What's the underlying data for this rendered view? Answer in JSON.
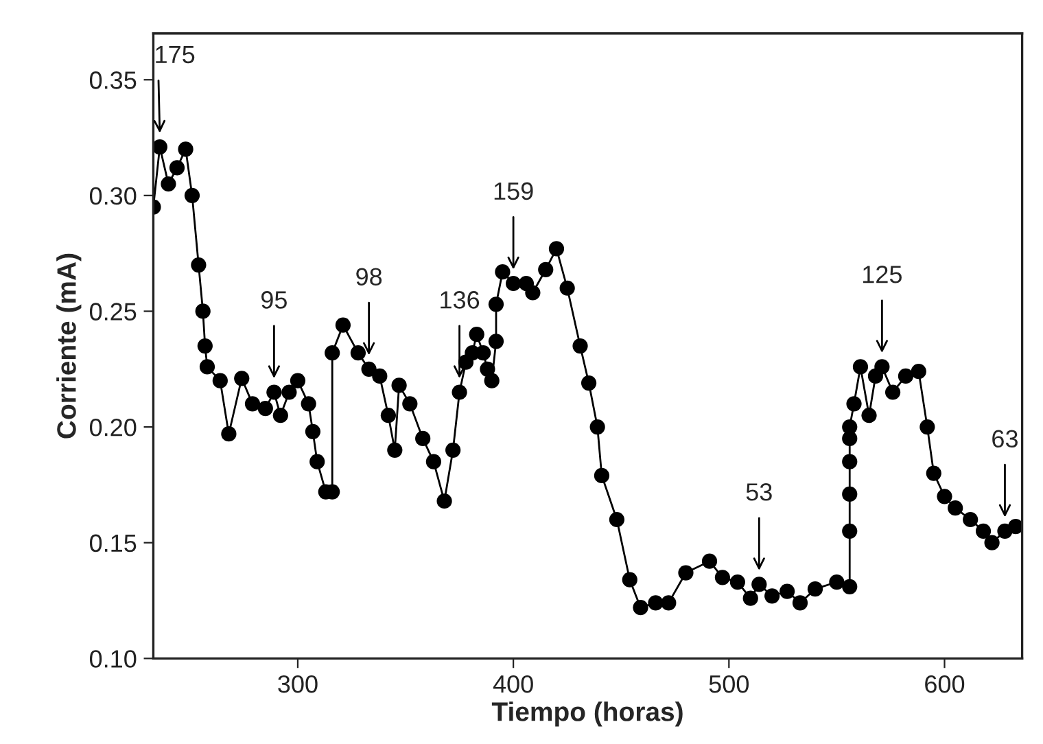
{
  "chart_data": {
    "type": "line",
    "xlabel": "Tiempo (horas)",
    "ylabel": "Corriente (mA)",
    "xlim": [
      233,
      636
    ],
    "ylim": [
      0.1,
      0.37
    ],
    "xticks": [
      300,
      400,
      500,
      600
    ],
    "yticks": [
      {
        "value": 0.1,
        "label": "0.10"
      },
      {
        "value": 0.15,
        "label": "0.15"
      },
      {
        "value": 0.2,
        "label": "0.20"
      },
      {
        "value": 0.25,
        "label": "0.25"
      },
      {
        "value": 0.3,
        "label": "0.30"
      },
      {
        "value": 0.35,
        "label": "0.35"
      }
    ],
    "grid": false,
    "legend": false,
    "marker": "circle",
    "line_style": "solid",
    "series": [
      {
        "color": "#000000",
        "x": [
          233,
          236,
          240,
          244,
          248,
          251,
          254,
          256,
          257,
          258,
          264,
          268,
          274,
          279,
          285,
          289,
          292,
          296,
          300,
          305,
          307,
          309,
          313,
          316,
          316,
          321,
          328,
          333,
          338,
          342,
          345,
          347,
          352,
          358,
          363,
          368,
          372,
          375,
          378,
          381,
          383,
          386,
          388,
          390,
          392,
          392,
          395,
          400,
          406,
          409,
          415,
          420,
          425,
          431,
          435,
          439,
          441,
          448,
          454,
          459,
          466,
          472,
          480,
          491,
          497,
          504,
          510,
          514,
          520,
          527,
          533,
          540,
          550,
          556,
          556,
          556,
          556,
          556,
          556,
          558,
          561,
          565,
          568,
          571,
          576,
          582,
          588,
          592,
          595,
          600,
          605,
          612,
          618,
          622,
          628,
          633
        ],
        "values": [
          0.295,
          0.321,
          0.305,
          0.312,
          0.32,
          0.3,
          0.27,
          0.25,
          0.235,
          0.226,
          0.22,
          0.197,
          0.221,
          0.21,
          0.208,
          0.215,
          0.205,
          0.215,
          0.22,
          0.21,
          0.198,
          0.185,
          0.172,
          0.172,
          0.232,
          0.244,
          0.232,
          0.225,
          0.222,
          0.205,
          0.19,
          0.218,
          0.21,
          0.195,
          0.185,
          0.168,
          0.19,
          0.215,
          0.228,
          0.232,
          0.24,
          0.232,
          0.225,
          0.22,
          0.237,
          0.253,
          0.267,
          0.262,
          0.262,
          0.258,
          0.268,
          0.277,
          0.26,
          0.235,
          0.219,
          0.2,
          0.179,
          0.16,
          0.134,
          0.122,
          0.124,
          0.124,
          0.137,
          0.142,
          0.135,
          0.133,
          0.126,
          0.132,
          0.127,
          0.129,
          0.124,
          0.13,
          0.133,
          0.131,
          0.155,
          0.171,
          0.185,
          0.195,
          0.2,
          0.21,
          0.226,
          0.205,
          0.222,
          0.226,
          0.215,
          0.222,
          0.224,
          0.2,
          0.18,
          0.17,
          0.165,
          0.16,
          0.155,
          0.15,
          0.155,
          0.157
        ]
      }
    ],
    "annotations": [
      {
        "text": "175",
        "x": 236,
        "y": 0.327
      },
      {
        "text": "95",
        "x": 289,
        "y": 0.221
      },
      {
        "text": "98",
        "x": 333,
        "y": 0.231
      },
      {
        "text": "136",
        "x": 375,
        "y": 0.221
      },
      {
        "text": "159",
        "x": 400,
        "y": 0.268
      },
      {
        "text": "53",
        "x": 514,
        "y": 0.138
      },
      {
        "text": "125",
        "x": 571,
        "y": 0.232
      },
      {
        "text": "63",
        "x": 628,
        "y": 0.161
      }
    ]
  }
}
